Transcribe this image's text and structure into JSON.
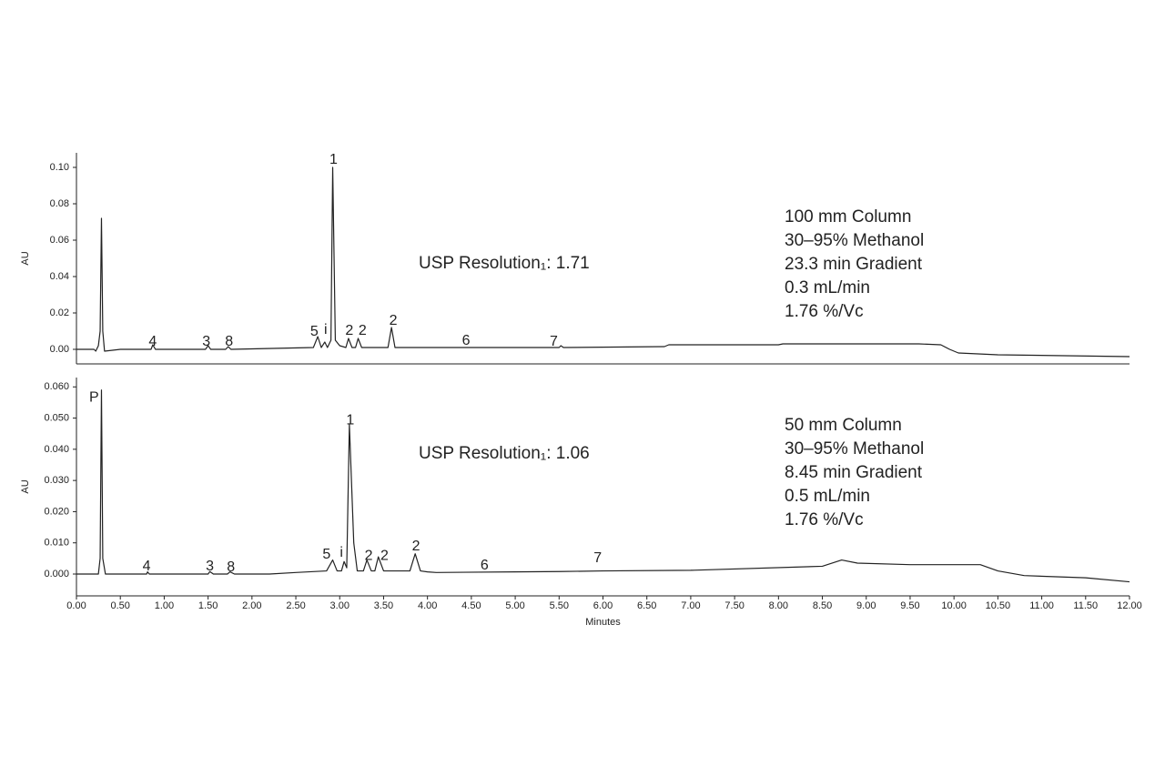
{
  "chart_data": [
    {
      "type": "line",
      "color": "#222222",
      "y_label": "AU",
      "xlim": [
        0,
        12
      ],
      "ylim": [
        -0.008,
        0.108
      ],
      "yticks": [
        {
          "value": 0,
          "label": "0.00"
        },
        {
          "value": 0.02,
          "label": "0.02"
        },
        {
          "value": 0.04,
          "label": "0.04"
        },
        {
          "value": 0.06,
          "label": "0.06"
        },
        {
          "value": 0.08,
          "label": "0.08"
        },
        {
          "value": 0.1,
          "label": "0.10"
        }
      ],
      "x": [
        0,
        0.2,
        0.22,
        0.25,
        0.27,
        0.285,
        0.3,
        0.32,
        0.5,
        0.85,
        0.87,
        0.9,
        1.47,
        1.5,
        1.53,
        1.7,
        1.73,
        1.76,
        2.7,
        2.75,
        2.79,
        2.83,
        2.86,
        2.9,
        2.92,
        2.95,
        3.0,
        3.07,
        3.1,
        3.14,
        3.18,
        3.21,
        3.25,
        3.55,
        3.59,
        3.63,
        5.5,
        5.52,
        5.55,
        6.7,
        6.75,
        8.0,
        8.05,
        9.6,
        9.85,
        9.95,
        10.05,
        10.5,
        12
      ],
      "values": [
        0,
        0,
        -0.001,
        0.002,
        0.01,
        0.072,
        0.01,
        -0.001,
        0,
        0,
        0.0025,
        0,
        0,
        0.002,
        0,
        0,
        0.0015,
        0,
        0.001,
        0.007,
        0.001,
        0.004,
        0.001,
        0.005,
        0.1,
        0.005,
        0.002,
        0.001,
        0.006,
        0.001,
        0.001,
        0.006,
        0.001,
        0.001,
        0.012,
        0.001,
        0.001,
        0.002,
        0.001,
        0.0015,
        0.0025,
        0.0025,
        0.003,
        0.003,
        0.0025,
        0,
        -0.002,
        -0.003,
        -0.004
      ],
      "annotations": [
        {
          "text": "4",
          "x": 0.87,
          "y": 0.002
        },
        {
          "text": "3",
          "x": 1.48,
          "y": 0.002
        },
        {
          "text": "8",
          "x": 1.74,
          "y": 0.002
        },
        {
          "text": "5",
          "x": 2.71,
          "y": 0.0075
        },
        {
          "text": "i",
          "x": 2.84,
          "y": 0.0085
        },
        {
          "text": "1",
          "x": 2.93,
          "y": 0.102
        },
        {
          "text": "2",
          "x": 3.11,
          "y": 0.008
        },
        {
          "text": "2",
          "x": 3.26,
          "y": 0.008
        },
        {
          "text": "2",
          "x": 3.61,
          "y": 0.0135
        },
        {
          "text": "6",
          "x": 4.44,
          "y": 0.0025
        },
        {
          "text": "7",
          "x": 5.44,
          "y": 0.002
        }
      ],
      "resolution": "USP Resolution₁: 1.71",
      "conditions": [
        "100 mm Column",
        "30–95% Methanol",
        "23.3 min Gradient",
        "0.3 mL/min",
        "1.76 %/Vc"
      ]
    },
    {
      "type": "line",
      "color": "#222222",
      "y_label": "AU",
      "x_label": "Minutes",
      "xlim": [
        0,
        12
      ],
      "ylim": [
        -0.007,
        0.063
      ],
      "xticks": [
        {
          "value": 0,
          "label": "0.00"
        },
        {
          "value": 0.5,
          "label": "0.50"
        },
        {
          "value": 1,
          "label": "1.00"
        },
        {
          "value": 1.5,
          "label": "1.50"
        },
        {
          "value": 2,
          "label": "2.00"
        },
        {
          "value": 2.5,
          "label": "2.50"
        },
        {
          "value": 3,
          "label": "3.00"
        },
        {
          "value": 3.5,
          "label": "3.50"
        },
        {
          "value": 4,
          "label": "4.00"
        },
        {
          "value": 4.5,
          "label": "4.50"
        },
        {
          "value": 5,
          "label": "5.00"
        },
        {
          "value": 5.5,
          "label": "5.50"
        },
        {
          "value": 6,
          "label": "6.00"
        },
        {
          "value": 6.5,
          "label": "6.50"
        },
        {
          "value": 7,
          "label": "7.00"
        },
        {
          "value": 7.5,
          "label": "7.50"
        },
        {
          "value": 8,
          "label": "8.00"
        },
        {
          "value": 8.5,
          "label": "8.50"
        },
        {
          "value": 9,
          "label": "9.00"
        },
        {
          "value": 9.5,
          "label": "9.50"
        },
        {
          "value": 10,
          "label": "10.00"
        },
        {
          "value": 10.5,
          "label": "10.50"
        },
        {
          "value": 11,
          "label": "11.00"
        },
        {
          "value": 11.5,
          "label": "11.50"
        },
        {
          "value": 12,
          "label": "12.00"
        }
      ],
      "yticks": [
        {
          "value": 0,
          "label": "0.000"
        },
        {
          "value": 0.01,
          "label": "0.010"
        },
        {
          "value": 0.02,
          "label": "0.020"
        },
        {
          "value": 0.03,
          "label": "0.030"
        },
        {
          "value": 0.04,
          "label": "0.040"
        },
        {
          "value": 0.05,
          "label": "0.050"
        },
        {
          "value": 0.06,
          "label": "0.060"
        }
      ],
      "x": [
        0,
        0.25,
        0.27,
        0.285,
        0.3,
        0.33,
        0.8,
        0.81,
        0.83,
        1.5,
        1.52,
        1.56,
        1.72,
        1.75,
        1.8,
        2.2,
        2.5,
        2.85,
        2.92,
        2.97,
        3.02,
        3.05,
        3.08,
        3.11,
        3.16,
        3.2,
        3.27,
        3.31,
        3.36,
        3.4,
        3.44,
        3.5,
        3.8,
        3.86,
        3.92,
        4.0,
        4.1,
        5.0,
        5.5,
        6.0,
        7.0,
        8.5,
        8.72,
        8.9,
        9.5,
        10.3,
        10.5,
        10.8,
        11.5,
        12
      ],
      "values": [
        0,
        0,
        0.005,
        0.059,
        0.005,
        0,
        0,
        0.0007,
        0,
        0,
        0.0008,
        0,
        0,
        0.0007,
        0,
        0,
        0.0005,
        0.001,
        0.0045,
        0.001,
        0.001,
        0.004,
        0.002,
        0.048,
        0.01,
        0.001,
        0.001,
        0.0045,
        0.001,
        0.001,
        0.0055,
        0.001,
        0.001,
        0.0065,
        0.001,
        0.0007,
        0.0005,
        0.0007,
        0.0008,
        0.001,
        0.0012,
        0.0025,
        0.0045,
        0.0035,
        0.003,
        0.003,
        0.001,
        -0.0005,
        -0.0012,
        -0.0025
      ],
      "annotations": [
        {
          "text": "P",
          "x": 0.2,
          "y": 0.0553
        },
        {
          "text": "4",
          "x": 0.8,
          "y": 0.0012
        },
        {
          "text": "3",
          "x": 1.52,
          "y": 0.0012
        },
        {
          "text": "8",
          "x": 1.76,
          "y": 0.0009
        },
        {
          "text": "5",
          "x": 2.85,
          "y": 0.005
        },
        {
          "text": "i",
          "x": 3.02,
          "y": 0.0055
        },
        {
          "text": "1",
          "x": 3.12,
          "y": 0.048
        },
        {
          "text": "2",
          "x": 3.33,
          "y": 0.0045
        },
        {
          "text": "2",
          "x": 3.51,
          "y": 0.0045
        },
        {
          "text": "2",
          "x": 3.87,
          "y": 0.0076
        },
        {
          "text": "6",
          "x": 4.65,
          "y": 0.0015
        },
        {
          "text": "7",
          "x": 5.94,
          "y": 0.0038
        }
      ],
      "resolution": "USP Resolution₁: 1.06",
      "conditions": [
        "50 mm Column",
        "30–95% Methanol",
        "8.45 min Gradient",
        "0.5 mL/min",
        "1.76 %/Vc"
      ]
    }
  ]
}
